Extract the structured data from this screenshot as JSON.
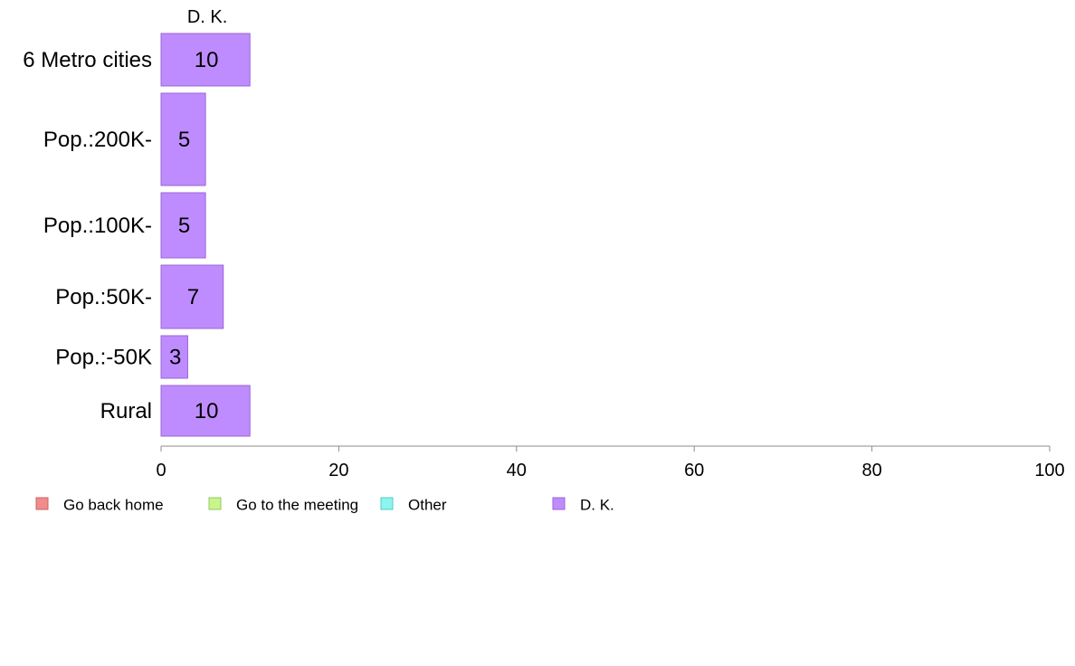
{
  "chart_data": {
    "type": "bar",
    "orientation": "horizontal",
    "stacked": true,
    "categories": [
      "6 Metro cities",
      "Pop.:200K-",
      "Pop.:100K-",
      "Pop.:50K-",
      "Pop.:-50K",
      "Rural"
    ],
    "series": [
      {
        "name": "Go back home",
        "color": "#f08c8c",
        "values": [
          0,
          0,
          0,
          0,
          0,
          0
        ]
      },
      {
        "name": "Go to the meeting",
        "color": "#c8f58c",
        "values": [
          0,
          0,
          0,
          0,
          0,
          0
        ]
      },
      {
        "name": "Other",
        "color": "#8cf5f0",
        "values": [
          0,
          0,
          0,
          0,
          0,
          0
        ]
      },
      {
        "name": "D. K.",
        "color": "#bf8cff",
        "values": [
          10,
          5,
          5,
          7,
          3,
          10
        ]
      }
    ],
    "data_labels": [
      "10",
      "5",
      "5",
      "7",
      "3",
      "10"
    ],
    "series_header": "D. K.",
    "xlim": [
      0,
      100
    ],
    "x_ticks": [
      0,
      20,
      40,
      60,
      80,
      100
    ],
    "grid": false,
    "legend_position": "bottom",
    "title": "",
    "xlabel": "",
    "ylabel": ""
  }
}
